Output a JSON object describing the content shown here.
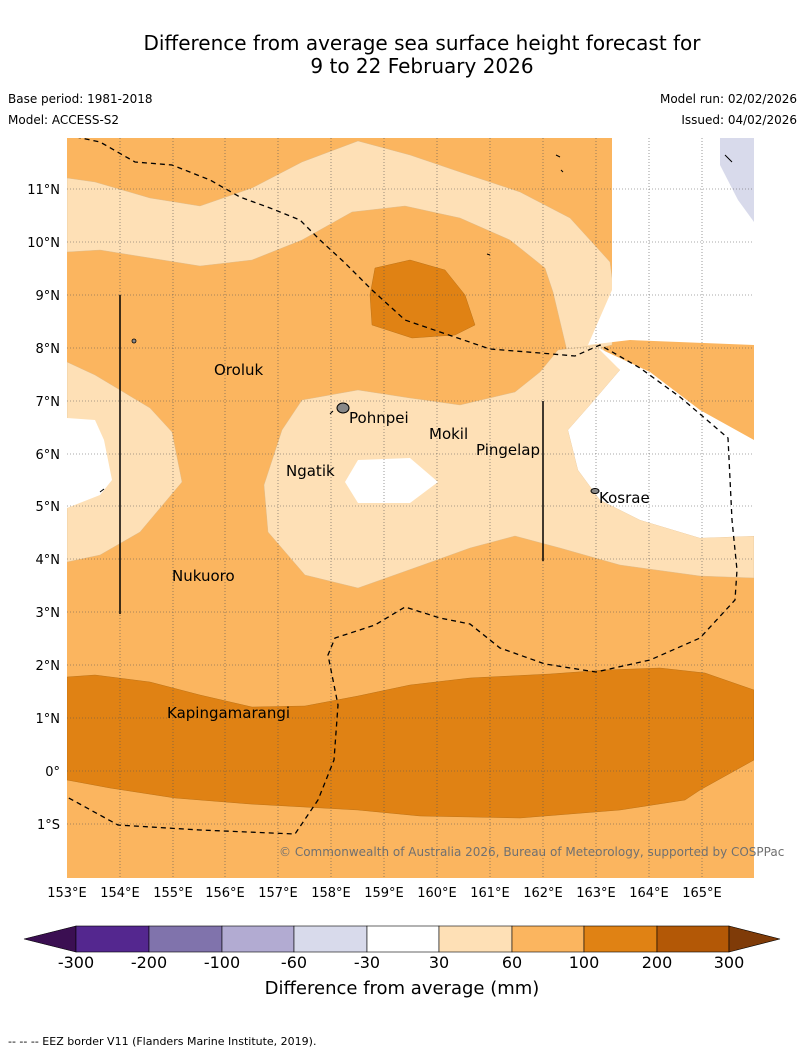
{
  "title_line1": "Difference from average sea surface height forecast for",
  "title_line2": "9 to 22 February 2026",
  "base_period": "Base period: 1981-2018",
  "model": "Model: ACCESS-S2",
  "model_run": "Model run: 02/02/2026",
  "issued": "Issued: 04/02/2026",
  "copyright": "© Commonwealth of Australia 2026, Bureau of Meteorology, supported by COSPPac",
  "lon_labels": [
    "153°E",
    "154°E",
    "155°E",
    "156°E",
    "157°E",
    "158°E",
    "159°E",
    "160°E",
    "161°E",
    "162°E",
    "163°E",
    "164°E",
    "165°E"
  ],
  "lat_labels": [
    "11°N",
    "10°N",
    "9°N",
    "8°N",
    "7°N",
    "6°N",
    "5°N",
    "4°N",
    "3°N",
    "2°N",
    "1°N",
    "0°",
    "1°S"
  ],
  "places": {
    "oroluk": "Oroluk",
    "pohnpei": "Pohnpei",
    "mokil": "Mokil",
    "pingelap": "Pingelap",
    "ngatik": "Ngatik",
    "kosrae": "Kosrae",
    "nukuoro": "Nukuoro",
    "kapingamarangi": "Kapingamarangi"
  },
  "colorbar": {
    "title": "Difference from average (mm)",
    "labels": [
      "-300",
      "-200",
      "-100",
      "-60",
      "-30",
      "30",
      "60",
      "100",
      "200",
      "300"
    ],
    "colors": {
      "lt_neg300": "#3b0f52",
      "neg300_neg200": "#54278f",
      "neg200_neg100": "#8073ac",
      "neg100_neg60": "#b2abd2",
      "neg60_neg30": "#d8daeb",
      "neg30_30": "#ffffff",
      "30_60": "#fee0b6",
      "60_100": "#fbb55f",
      "100_200": "#e08214",
      "200_300": "#b35806",
      "gt_300": "#7f3b08"
    }
  },
  "footnote": "--  --  -- EEZ border V11 (Flanders Marine Institute, 2019)."
}
